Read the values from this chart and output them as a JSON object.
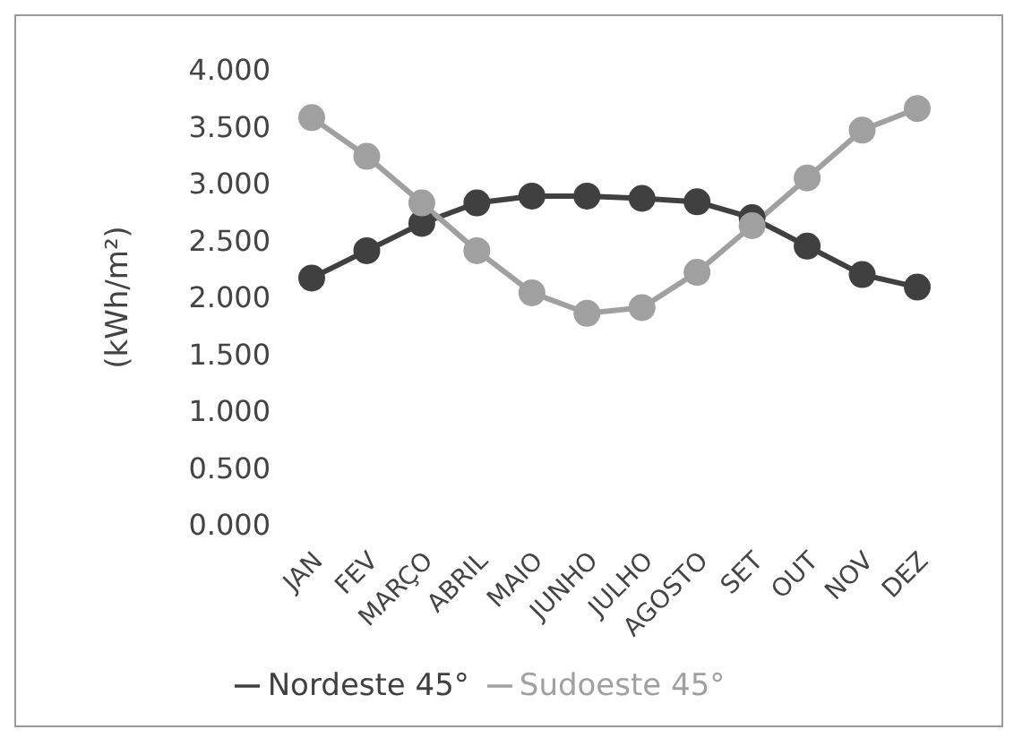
{
  "chart_data": {
    "type": "line",
    "ylabel": "(kWh/m²)",
    "categories": [
      "JAN",
      "FEV",
      "MARÇO",
      "ABRIL",
      "MAIO",
      "JUNHO",
      "JULHO",
      "AGOSTO",
      "SET",
      "OUT",
      "NOV",
      "DEZ"
    ],
    "series": [
      {
        "name": "Nordeste 45°",
        "color": "#404040",
        "values": [
          2.17,
          2.41,
          2.65,
          2.83,
          2.89,
          2.89,
          2.87,
          2.84,
          2.7,
          2.45,
          2.2,
          2.09
        ]
      },
      {
        "name": "Sudoeste 45°",
        "color": "#a0a0a0",
        "values": [
          3.58,
          3.24,
          2.83,
          2.41,
          2.04,
          1.86,
          1.91,
          2.22,
          2.63,
          3.05,
          3.47,
          3.66
        ]
      }
    ],
    "ylim": [
      0,
      4
    ],
    "yticks": [
      {
        "value": 0,
        "label": "0.000"
      },
      {
        "value": 0.5,
        "label": "0.500"
      },
      {
        "value": 1,
        "label": "1.000"
      },
      {
        "value": 1.5,
        "label": "1.500"
      },
      {
        "value": 2,
        "label": "2.000"
      },
      {
        "value": 2.5,
        "label": "2.500"
      },
      {
        "value": 3,
        "label": "3.000"
      },
      {
        "value": 3.5,
        "label": "3.500"
      },
      {
        "value": 4,
        "label": "4.000"
      }
    ],
    "grid": false,
    "legend": "bottom",
    "marker": "circle",
    "line_style": "solid"
  }
}
